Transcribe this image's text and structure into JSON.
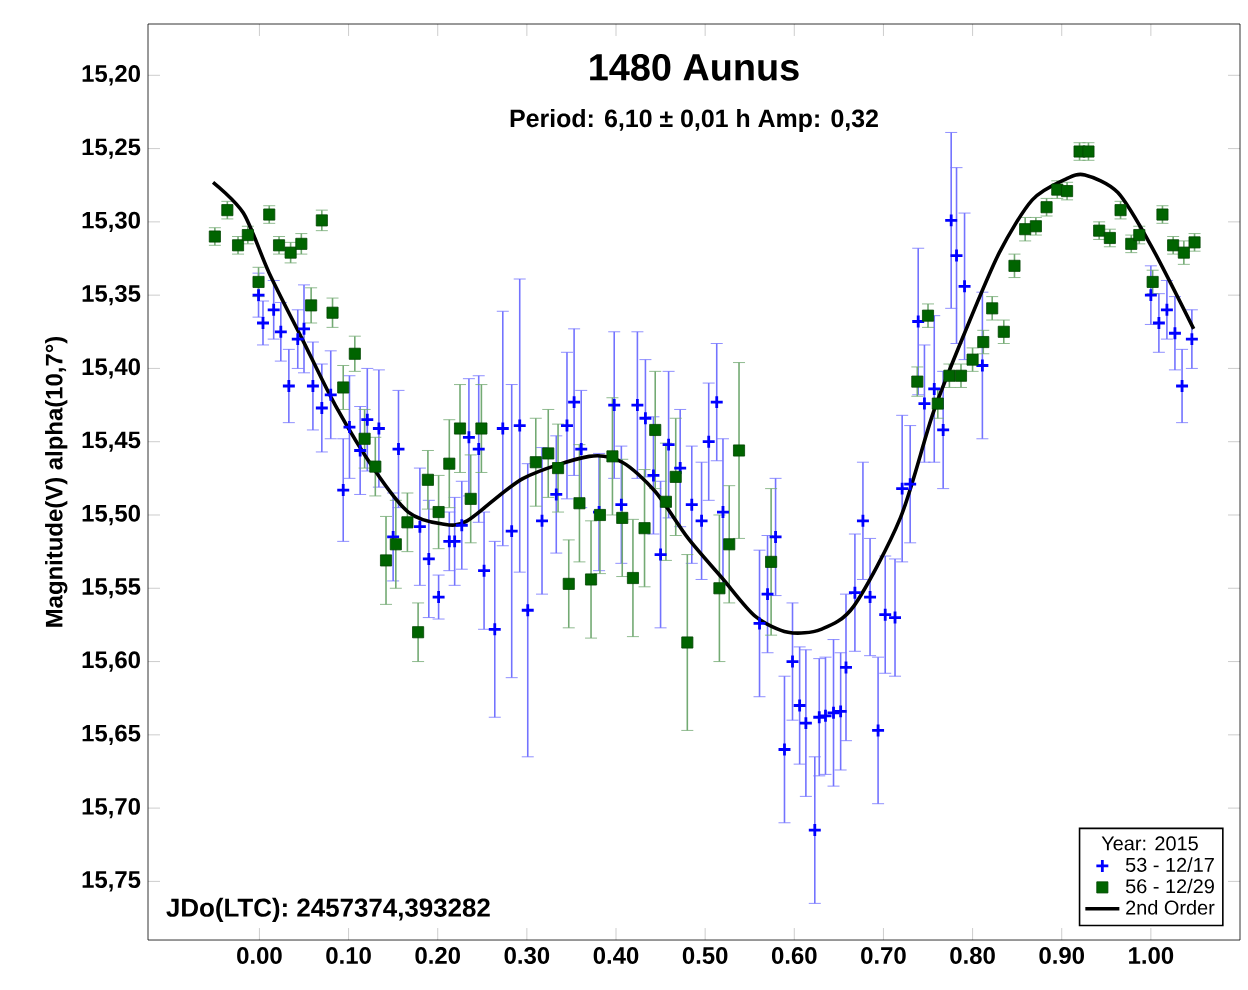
{
  "chart_data": {
    "type": "scatter",
    "title": "1480 Aunus",
    "subtitle": "Period: 6,10 ± 0,01 h   Amp: 0,32",
    "ylabel": "Magnitude(V) alpha(10,7°)",
    "legend_title": "Year: 2015",
    "annotations": [
      "JDo(LTC): 2457374,393282"
    ],
    "legend": "bottom right",
    "xlim": [
      -0.125,
      1.1
    ],
    "ylim": [
      15.79,
      15.165
    ],
    "xticks": [
      {
        "value": 0,
        "label": "0.00"
      },
      {
        "value": 0.1,
        "label": "0.10"
      },
      {
        "value": 0.2,
        "label": "0.20"
      },
      {
        "value": 0.3,
        "label": "0.30"
      },
      {
        "value": 0.4,
        "label": "0.40"
      },
      {
        "value": 0.5,
        "label": "0.50"
      },
      {
        "value": 0.6,
        "label": "0.60"
      },
      {
        "value": 0.7,
        "label": "0.70"
      },
      {
        "value": 0.8,
        "label": "0.80"
      },
      {
        "value": 0.9,
        "label": "0.90"
      },
      {
        "value": 1.0,
        "label": "1.00"
      }
    ],
    "yticks": [
      {
        "value": 15.2,
        "label": "15,20"
      },
      {
        "value": 15.25,
        "label": "15,25"
      },
      {
        "value": 15.3,
        "label": "15,30"
      },
      {
        "value": 15.35,
        "label": "15,35"
      },
      {
        "value": 15.4,
        "label": "15,40"
      },
      {
        "value": 15.45,
        "label": "15,45"
      },
      {
        "value": 15.5,
        "label": "15,50"
      },
      {
        "value": 15.55,
        "label": "15,55"
      },
      {
        "value": 15.6,
        "label": "15,60"
      },
      {
        "value": 15.65,
        "label": "15,65"
      },
      {
        "value": 15.7,
        "label": "15,70"
      },
      {
        "value": 15.75,
        "label": "15,75"
      }
    ],
    "series": [
      {
        "name": "53 - 12/17",
        "marker": "cross",
        "color": "#0000ff",
        "x": [
          -0.001,
          0.004,
          0.016,
          0.024,
          0.033,
          0.043,
          0.05,
          0.06,
          0.07,
          0.08,
          0.094,
          0.101,
          0.113,
          0.121,
          0.134,
          0.156,
          0.15,
          0.18,
          0.19,
          0.201,
          0.213,
          0.219,
          0.227,
          0.235,
          0.246,
          0.252,
          0.264,
          0.273,
          0.283,
          0.292,
          0.301,
          0.317,
          0.333,
          0.345,
          0.353,
          0.361,
          0.381,
          0.398,
          0.406,
          0.424,
          0.433,
          0.442,
          0.45,
          0.459,
          0.472,
          0.485,
          0.496,
          0.504,
          0.513,
          0.52,
          0.561,
          0.57,
          0.579,
          0.589,
          0.598,
          0.606,
          0.613,
          0.623,
          0.628,
          0.635,
          0.644,
          0.652,
          0.658,
          0.668,
          0.677,
          0.685,
          0.694,
          0.702,
          0.713,
          0.721,
          0.73,
          0.739,
          0.746,
          0.757,
          0.767,
          0.776,
          0.782,
          0.791,
          0.811,
          1.0,
          1.009,
          1.018,
          1.027,
          1.035,
          1.046
        ],
        "values": [
          15.35,
          15.369,
          15.36,
          15.375,
          15.412,
          15.38,
          15.373,
          15.412,
          15.427,
          15.418,
          15.483,
          15.44,
          15.456,
          15.435,
          15.441,
          15.455,
          15.515,
          15.508,
          15.53,
          15.556,
          15.518,
          15.518,
          15.507,
          15.447,
          15.455,
          15.538,
          15.578,
          15.441,
          15.511,
          15.439,
          15.565,
          15.504,
          15.486,
          15.439,
          15.423,
          15.455,
          15.498,
          15.425,
          15.493,
          15.425,
          15.434,
          15.473,
          15.527,
          15.452,
          15.468,
          15.493,
          15.504,
          15.45,
          15.423,
          15.498,
          15.574,
          15.554,
          15.515,
          15.66,
          15.6,
          15.63,
          15.642,
          15.715,
          15.638,
          15.637,
          15.635,
          15.634,
          15.604,
          15.553,
          15.504,
          15.556,
          15.647,
          15.568,
          15.57,
          15.482,
          15.479,
          15.368,
          15.424,
          15.414,
          15.442,
          15.299,
          15.323,
          15.344,
          15.398,
          15.35,
          15.369,
          15.36,
          15.376,
          15.412,
          15.38
        ],
        "errors": [
          0.015,
          0.015,
          0.02,
          0.02,
          0.025,
          0.02,
          0.03,
          0.03,
          0.03,
          0.03,
          0.035,
          0.035,
          0.03,
          0.035,
          0.04,
          0.04,
          0.03,
          0.04,
          0.04,
          0.015,
          0.02,
          0.03,
          0.03,
          0.04,
          0.05,
          0.04,
          0.06,
          0.08,
          0.1,
          0.1,
          0.1,
          0.05,
          0.04,
          0.05,
          0.05,
          0.04,
          0.04,
          0.05,
          0.04,
          0.05,
          0.04,
          0.04,
          0.05,
          0.05,
          0.04,
          0.04,
          0.04,
          0.04,
          0.04,
          0.05,
          0.05,
          0.04,
          0.04,
          0.05,
          0.04,
          0.04,
          0.05,
          0.05,
          0.04,
          0.04,
          0.05,
          0.04,
          0.05,
          0.04,
          0.04,
          0.04,
          0.05,
          0.04,
          0.04,
          0.05,
          0.04,
          0.05,
          0.04,
          0.05,
          0.04,
          0.06,
          0.06,
          0.05,
          0.05,
          0.02,
          0.02,
          0.02,
          0.025,
          0.025,
          0.02
        ]
      },
      {
        "name": "56 - 12/29",
        "marker": "square",
        "color": "#006400",
        "x": [
          -0.05,
          -0.036,
          -0.024,
          -0.013,
          -0.001,
          0.011,
          0.022,
          0.035,
          0.047,
          0.07,
          0.058,
          0.082,
          0.107,
          0.094,
          0.118,
          0.13,
          0.142,
          0.153,
          0.166,
          0.178,
          0.189,
          0.201,
          0.213,
          0.225,
          0.237,
          0.249,
          0.31,
          0.324,
          0.335,
          0.347,
          0.359,
          0.372,
          0.382,
          0.396,
          0.407,
          0.419,
          0.432,
          0.444,
          0.456,
          0.467,
          0.48,
          0.516,
          0.527,
          0.538,
          0.574,
          0.738,
          0.75,
          0.761,
          0.774,
          0.787,
          0.8,
          0.812,
          0.822,
          0.835,
          0.847,
          0.859,
          0.871,
          0.883,
          0.895,
          0.906,
          0.92,
          0.93,
          0.942,
          0.954,
          0.966,
          0.978,
          0.987,
          1.002,
          1.013,
          1.025,
          1.037,
          1.049
        ],
        "values": [
          15.31,
          15.292,
          15.316,
          15.309,
          15.341,
          15.295,
          15.316,
          15.321,
          15.315,
          15.299,
          15.357,
          15.362,
          15.39,
          15.413,
          15.448,
          15.467,
          15.531,
          15.52,
          15.505,
          15.58,
          15.476,
          15.498,
          15.465,
          15.441,
          15.489,
          15.441,
          15.464,
          15.458,
          15.468,
          15.547,
          15.492,
          15.544,
          15.5,
          15.46,
          15.502,
          15.543,
          15.509,
          15.442,
          15.491,
          15.474,
          15.587,
          15.55,
          15.52,
          15.456,
          15.532,
          15.409,
          15.364,
          15.424,
          15.405,
          15.405,
          15.394,
          15.382,
          15.359,
          15.375,
          15.33,
          15.305,
          15.303,
          15.29,
          15.278,
          15.279,
          15.252,
          15.252,
          15.306,
          15.311,
          15.292,
          15.315,
          15.309,
          15.341,
          15.295,
          15.316,
          15.321,
          15.314
        ],
        "errors": [
          0.006,
          0.006,
          0.006,
          0.006,
          0.01,
          0.006,
          0.006,
          0.007,
          0.007,
          0.007,
          0.012,
          0.01,
          0.012,
          0.015,
          0.02,
          0.02,
          0.03,
          0.03,
          0.02,
          0.02,
          0.02,
          0.025,
          0.03,
          0.03,
          0.03,
          0.03,
          0.03,
          0.03,
          0.03,
          0.03,
          0.04,
          0.04,
          0.04,
          0.04,
          0.04,
          0.04,
          0.04,
          0.04,
          0.04,
          0.04,
          0.06,
          0.05,
          0.04,
          0.06,
          0.05,
          0.01,
          0.008,
          0.01,
          0.008,
          0.008,
          0.008,
          0.008,
          0.008,
          0.008,
          0.008,
          0.008,
          0.006,
          0.006,
          0.006,
          0.006,
          0.006,
          0.006,
          0.006,
          0.006,
          0.006,
          0.006,
          0.006,
          0.008,
          0.006,
          0.006,
          0.008,
          0.006
        ]
      },
      {
        "name": "2nd Order",
        "type": "line",
        "marker": "none",
        "line_style": "solid",
        "color": "#000000",
        "x": [
          -0.052,
          -0.018,
          0.011,
          0.048,
          0.085,
          0.13,
          0.167,
          0.204,
          0.233,
          0.296,
          0.37,
          0.407,
          0.444,
          0.481,
          0.519,
          0.556,
          0.593,
          0.63,
          0.667,
          0.719,
          0.756,
          0.793,
          0.83,
          0.867,
          0.904,
          0.926,
          0.963,
          1.0,
          1.048
        ],
        "values": [
          15.273,
          15.294,
          15.335,
          15.38,
          15.425,
          15.47,
          15.498,
          15.506,
          15.504,
          15.475,
          15.46,
          15.464,
          15.484,
          15.516,
          15.543,
          15.569,
          15.58,
          15.578,
          15.562,
          15.502,
          15.43,
          15.373,
          15.321,
          15.285,
          15.271,
          15.268,
          15.28,
          15.316,
          15.373
        ]
      }
    ]
  }
}
